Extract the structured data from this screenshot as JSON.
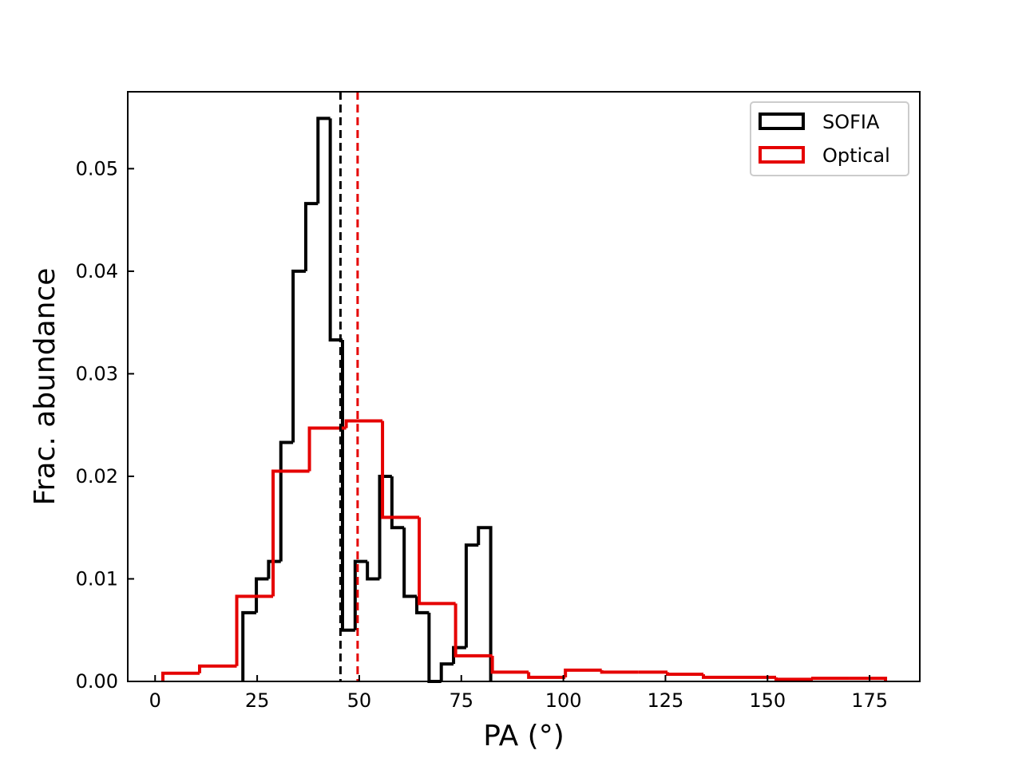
{
  "chart_data": {
    "type": "histogram",
    "xlabel": "PA (°)",
    "ylabel": "Frac. abundance",
    "xlim": [
      -6.7,
      187.3
    ],
    "ylim": [
      0,
      0.0575
    ],
    "xticks": [
      0,
      25,
      50,
      75,
      100,
      125,
      150,
      175
    ],
    "yticks": [
      0.0,
      0.01,
      0.02,
      0.03,
      0.04,
      0.05
    ],
    "ytick_labels": [
      "0.00",
      "0.01",
      "0.02",
      "0.03",
      "0.04",
      "0.05"
    ],
    "legend_placement": "top-right",
    "grid": false,
    "series": [
      {
        "name": "SOFIA",
        "color": "#000000",
        "bin_edges": [
          21.5,
          24.8,
          27.8,
          30.8,
          33.8,
          36.9,
          39.9,
          42.9,
          45.9,
          49.0,
          52.0,
          55.0,
          58.0,
          61.0,
          64.1,
          67.1,
          70.1,
          73.1,
          76.2,
          79.2,
          82.2
        ],
        "values": [
          0.0067,
          0.01,
          0.0117,
          0.0233,
          0.04,
          0.0466,
          0.0549,
          0.0333,
          0.005,
          0.0117,
          0.01,
          0.02,
          0.015,
          0.0083,
          0.0067,
          0.0,
          0.0017,
          0.0033,
          0.0133,
          0.015
        ],
        "median_line": 45.4
      },
      {
        "name": "Optical",
        "color": "#e50000",
        "bin_edges": [
          1.9,
          10.9,
          20.0,
          28.9,
          37.8,
          46.8,
          55.7,
          64.7,
          73.6,
          82.6,
          91.5,
          100.5,
          109.4,
          118.3,
          125.5,
          134.3,
          143.2,
          152.1,
          161.1,
          170.0,
          178.9
        ],
        "values": [
          0.0008,
          0.0015,
          0.0083,
          0.0205,
          0.0247,
          0.0254,
          0.016,
          0.0076,
          0.0025,
          0.0009,
          0.0004,
          0.0011,
          0.0009,
          0.0009,
          0.0007,
          0.0004,
          0.0004,
          0.0002,
          0.0003,
          0.0003
        ],
        "median_line": 49.6
      }
    ]
  }
}
